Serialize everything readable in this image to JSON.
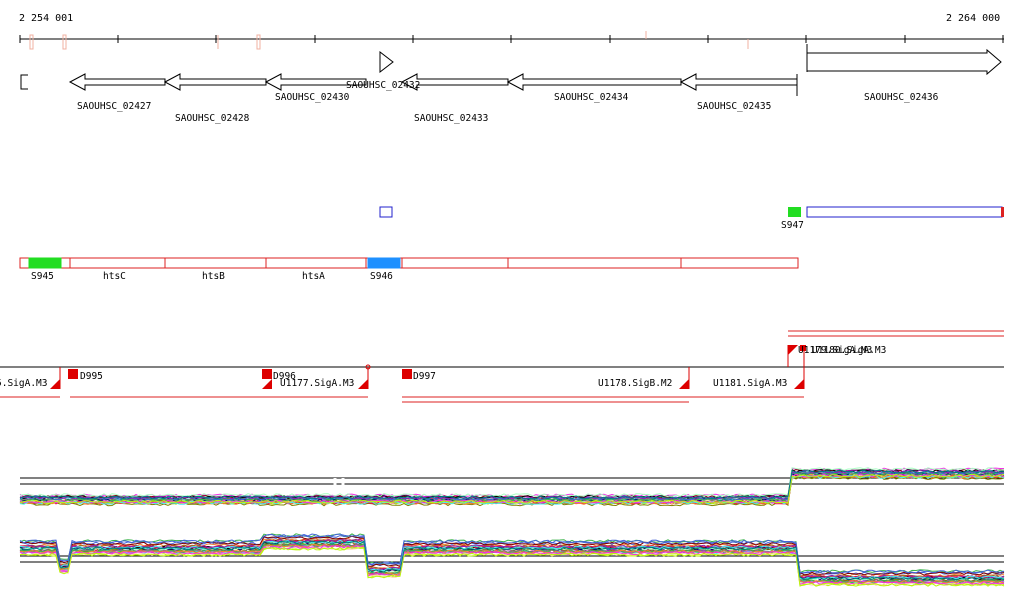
{
  "ruler": {
    "start_label": "2 254 001",
    "end_label": "2 264 000"
  },
  "genes": [
    {
      "label": "SAOUHSC_02427",
      "strand": "-"
    },
    {
      "label": "SAOUHSC_02428",
      "strand": "-"
    },
    {
      "label": "SAOUHSC_02430",
      "strand": "-"
    },
    {
      "label": "SAOUHSC_02432",
      "strand": "+"
    },
    {
      "label": "SAOUHSC_02433",
      "strand": "-"
    },
    {
      "label": "SAOUHSC_02434",
      "strand": "-"
    },
    {
      "label": "SAOUHSC_02435",
      "strand": "-"
    },
    {
      "label": "SAOUHSC_02436",
      "strand": "+"
    }
  ],
  "features": [
    {
      "label": "S947",
      "color": "#22dd22"
    },
    {
      "label": "S945",
      "color": "#22dd22"
    },
    {
      "label": "htsC"
    },
    {
      "label": "htsB"
    },
    {
      "label": "htsA"
    },
    {
      "label": "S946",
      "color": "#1e90ff"
    }
  ],
  "promoters": [
    {
      "label": "5.SigA.M3"
    },
    {
      "label": "D995"
    },
    {
      "label": "D996"
    },
    {
      "label": "U1177.SigA.M3"
    },
    {
      "label": "D997"
    },
    {
      "label": "U1178.SigB.M2"
    },
    {
      "label": "U1181.SigA.M3"
    },
    {
      "label": "U1179.SigA.M3"
    },
    {
      "label": "U1180.SigA.M3"
    }
  ],
  "colors": {
    "gene_outline": "#000000",
    "feature_outline": "#dd2222",
    "promoter": "#dd0000",
    "ruler_tick": "#f0b0a0"
  }
}
